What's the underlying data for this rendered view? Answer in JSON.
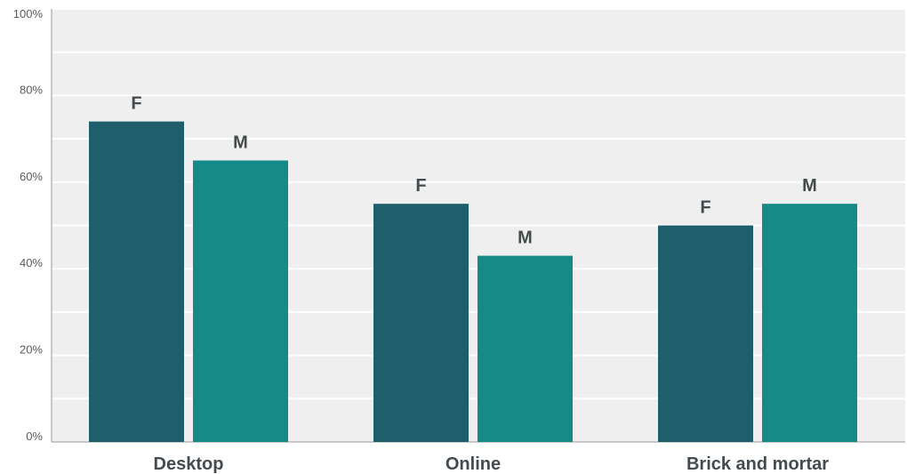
{
  "chart_data": {
    "type": "bar",
    "categories": [
      "Desktop",
      "Online",
      "Brick and mortar"
    ],
    "series": [
      {
        "values": [
          74,
          55,
          50
        ],
        "label": "F",
        "color": "#1f5f6b"
      },
      {
        "values": [
          65,
          43,
          55
        ],
        "label": "M",
        "color": "#168a87"
      }
    ],
    "ylim": [
      0,
      100
    ],
    "y_ticks": [
      0,
      20,
      40,
      60,
      80,
      100
    ],
    "y_tick_suffix": "%",
    "xlabel": "",
    "ylabel": "",
    "grid": true,
    "plot_background": "#efefef",
    "gridline_color": "#ffffff"
  }
}
